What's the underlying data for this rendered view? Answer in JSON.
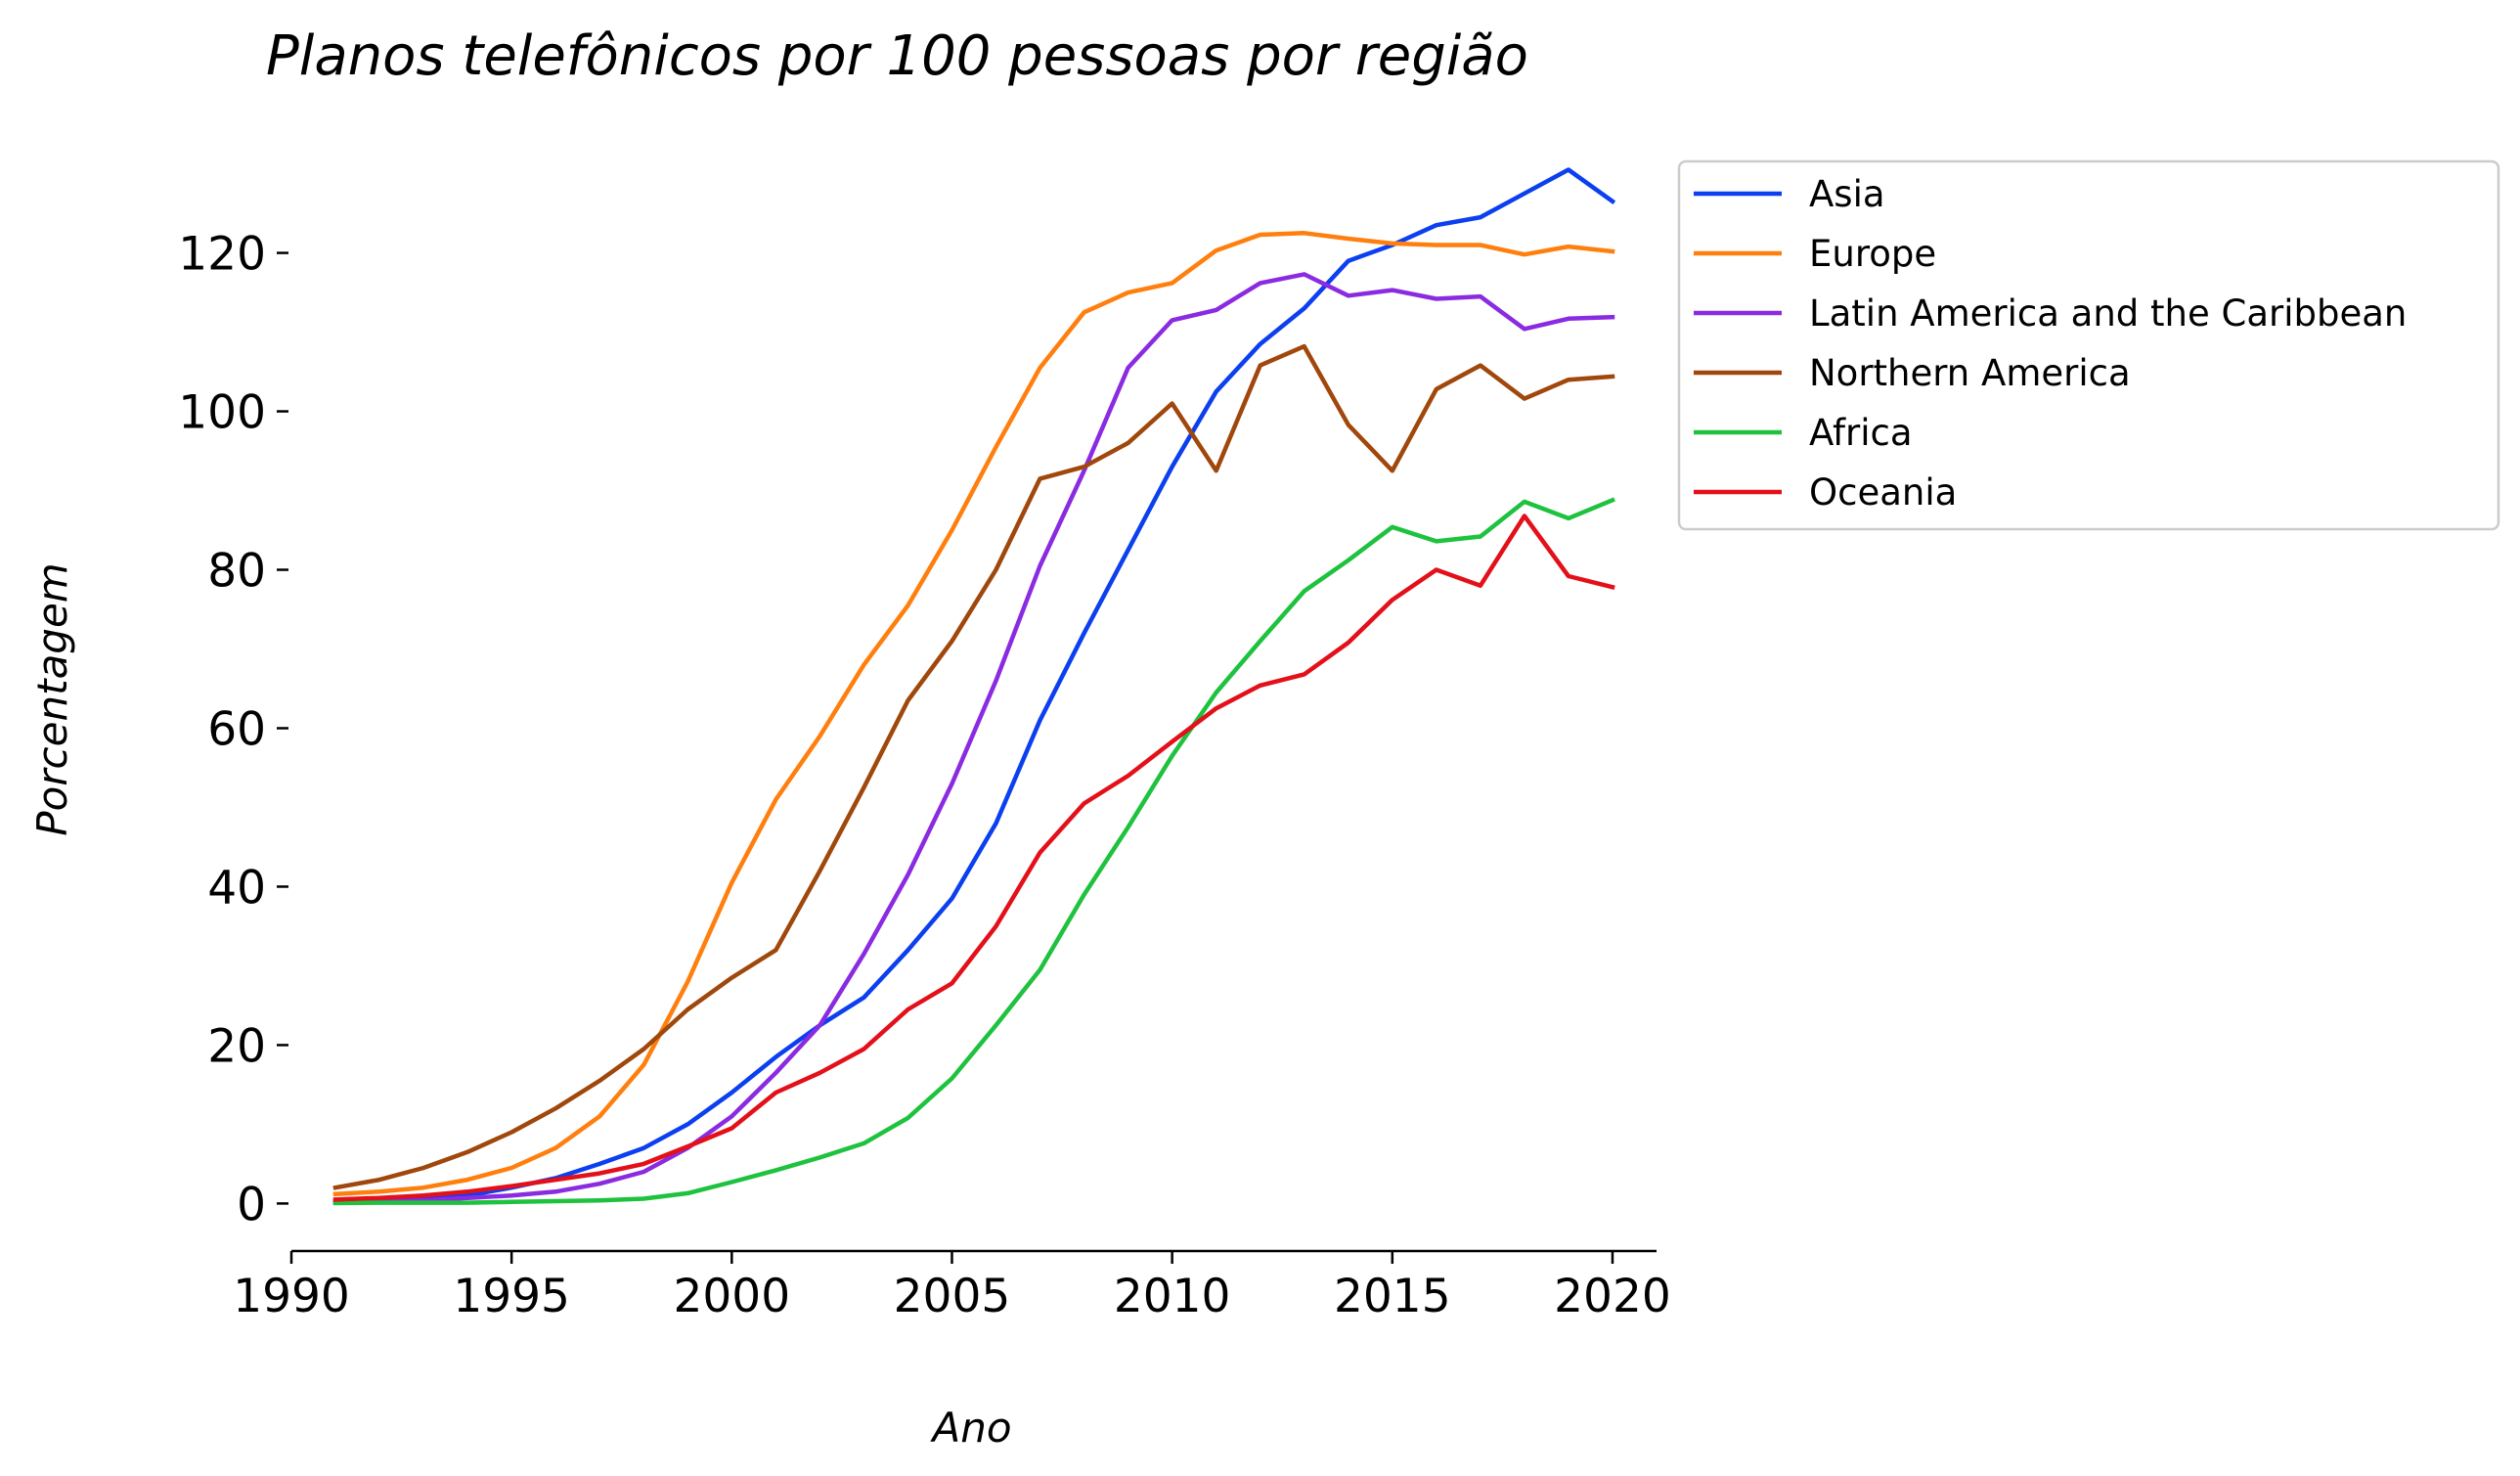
{
  "chart_data": {
    "type": "line",
    "title": "Planos telefônicos por 100 pessoas por região",
    "xlabel": "Ano",
    "ylabel": "Porcentagem",
    "xlim": [
      1990,
      2021
    ],
    "ylim": [
      -6,
      136
    ],
    "x_ticks": [
      1990,
      1995,
      2000,
      2005,
      2010,
      2015,
      2020
    ],
    "y_ticks": [
      0,
      20,
      40,
      60,
      80,
      100,
      120
    ],
    "grid": false,
    "legend_position": "outside-right",
    "x": [
      1991,
      1992,
      1993,
      1994,
      1995,
      1996,
      1997,
      1998,
      1999,
      2000,
      2001,
      2002,
      2003,
      2004,
      2005,
      2006,
      2007,
      2008,
      2009,
      2010,
      2011,
      2012,
      2013,
      2014,
      2015,
      2016,
      2017,
      2018,
      2019,
      2020
    ],
    "series": [
      {
        "name": "Asia",
        "color": "#0b3ff0",
        "values": [
          0.2,
          0.3,
          0.5,
          1.0,
          2.0,
          3.2,
          5.0,
          7.0,
          10.0,
          14.0,
          18.5,
          22.5,
          26.0,
          32.0,
          38.5,
          48.0,
          61.0,
          72.0,
          82.5,
          93.0,
          102.5,
          108.5,
          113.0,
          119.0,
          121.0,
          123.5,
          124.5,
          127.5,
          130.5,
          126.5
        ]
      },
      {
        "name": "Europe",
        "color": "#ff7f0e",
        "values": [
          1.2,
          1.5,
          2.0,
          3.0,
          4.5,
          7.0,
          11.0,
          17.5,
          28.0,
          40.5,
          51.0,
          59.0,
          68.0,
          75.5,
          85.0,
          95.5,
          105.5,
          112.5,
          115.0,
          116.2,
          120.3,
          122.3,
          122.5,
          121.8,
          121.2,
          121.0,
          121.0,
          119.8,
          120.8,
          120.2
        ]
      },
      {
        "name": "Latin America and the Caribbean",
        "color": "#8a2be2",
        "values": [
          0.1,
          0.2,
          0.4,
          0.7,
          1.0,
          1.5,
          2.5,
          4.0,
          7.0,
          11.0,
          16.5,
          22.5,
          31.5,
          41.5,
          53.0,
          66.0,
          80.5,
          92.5,
          105.5,
          111.5,
          112.8,
          116.2,
          117.3,
          114.6,
          115.3,
          114.2,
          114.5,
          110.4,
          111.7,
          111.9
        ]
      },
      {
        "name": "Northern America",
        "color": "#a0470c",
        "values": [
          2.0,
          3.0,
          4.5,
          6.5,
          9.0,
          12.0,
          15.5,
          19.5,
          24.5,
          28.5,
          32.0,
          42.0,
          52.5,
          63.5,
          71.0,
          80.0,
          91.5,
          93.0,
          96.0,
          101.0,
          92.5,
          105.8,
          108.2,
          98.3,
          92.5,
          102.8,
          105.8,
          101.6,
          104.0,
          104.4
        ]
      },
      {
        "name": "Africa",
        "color": "#1ec23e",
        "values": [
          0.05,
          0.1,
          0.1,
          0.1,
          0.2,
          0.3,
          0.4,
          0.6,
          1.3,
          2.7,
          4.2,
          5.8,
          7.6,
          10.8,
          15.8,
          22.5,
          29.5,
          39.0,
          47.5,
          56.5,
          64.5,
          71.0,
          77.3,
          81.2,
          85.4,
          83.6,
          84.2,
          88.6,
          86.5,
          88.8
        ]
      },
      {
        "name": "Oceania",
        "color": "#e3101a",
        "values": [
          0.5,
          0.7,
          1.0,
          1.5,
          2.2,
          3.0,
          3.8,
          5.0,
          7.2,
          9.5,
          14.0,
          16.5,
          19.5,
          24.5,
          27.8,
          35.0,
          44.3,
          50.5,
          54.0,
          58.3,
          62.5,
          65.4,
          66.8,
          70.8,
          76.2,
          80.0,
          78.0,
          86.8,
          79.2,
          77.8
        ]
      }
    ]
  }
}
